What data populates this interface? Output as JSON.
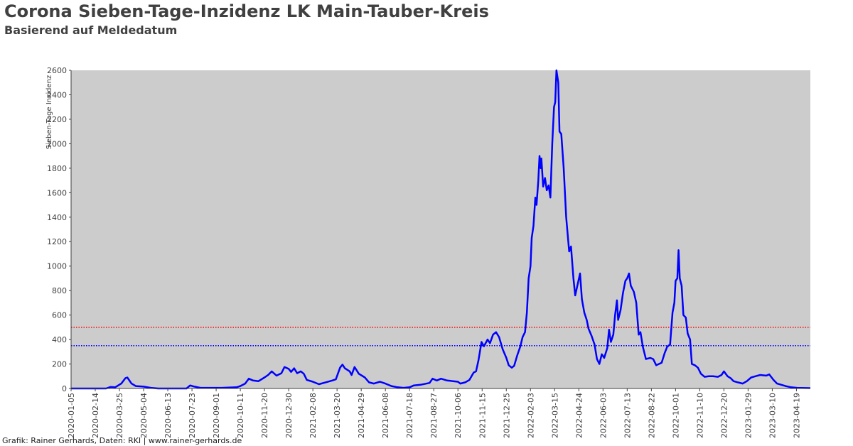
{
  "header": {
    "title": "Corona Sieben-Tage-Inzidenz LK Main-Tauber-Kreis",
    "subtitle": "Basierend auf Meldedatum"
  },
  "footer": {
    "credit": "Grafik: Rainer Gerhards, Daten: RKI | www.rainer-gerhards.de"
  },
  "colors": {
    "plot_background": "#cccccc",
    "series": "#0000ff",
    "threshold_500": "#ff0000",
    "threshold_350": "#0000ff"
  },
  "chart_data": {
    "type": "line",
    "title": "Corona Sieben-Tage-Inzidenz LK Main-Tauber-Kreis",
    "subtitle": "Basierend auf Meldedatum",
    "xlabel": "",
    "ylabel": "Sieben-Tage Inzidenz",
    "ylim": [
      0,
      2600
    ],
    "xlim": [
      "2020-01-05",
      "2023-05-12"
    ],
    "grid": false,
    "yticks": [
      0,
      200,
      400,
      600,
      800,
      1000,
      1200,
      1400,
      1600,
      1800,
      2000,
      2200,
      2400,
      2600
    ],
    "xticks": [
      "2020-01-05",
      "2020-02-14",
      "2020-03-25",
      "2020-05-04",
      "2020-06-13",
      "2020-07-23",
      "2020-09-01",
      "2020-10-11",
      "2020-11-20",
      "2020-12-30",
      "2021-02-08",
      "2021-03-20",
      "2021-04-29",
      "2021-06-08",
      "2021-07-18",
      "2021-08-27",
      "2021-10-06",
      "2021-11-15",
      "2021-12-25",
      "2022-02-03",
      "2022-03-15",
      "2022-04-24",
      "2022-06-03",
      "2022-07-13",
      "2022-08-22",
      "2022-10-01",
      "2022-11-10",
      "2022-12-20",
      "2023-01-29",
      "2023-03-10",
      "2023-04-19"
    ],
    "reference_lines": [
      {
        "y": 500,
        "color": "#ff0000",
        "style": "dotted"
      },
      {
        "y": 350,
        "color": "#0000ff",
        "style": "dotted"
      }
    ],
    "series": [
      {
        "color": "#0000ff",
        "points": [
          [
            "2020-01-05",
            0
          ],
          [
            "2020-03-03",
            0
          ],
          [
            "2020-03-10",
            12
          ],
          [
            "2020-03-18",
            10
          ],
          [
            "2020-03-28",
            40
          ],
          [
            "2020-04-04",
            85
          ],
          [
            "2020-04-07",
            90
          ],
          [
            "2020-04-14",
            40
          ],
          [
            "2020-04-21",
            20
          ],
          [
            "2020-05-04",
            15
          ],
          [
            "2020-05-16",
            5
          ],
          [
            "2020-05-28",
            0
          ],
          [
            "2020-07-14",
            0
          ],
          [
            "2020-07-20",
            25
          ],
          [
            "2020-07-27",
            15
          ],
          [
            "2020-08-06",
            5
          ],
          [
            "2020-08-18",
            5
          ],
          [
            "2020-09-10",
            5
          ],
          [
            "2020-10-05",
            10
          ],
          [
            "2020-10-11",
            20
          ],
          [
            "2020-10-19",
            40
          ],
          [
            "2020-10-25",
            80
          ],
          [
            "2020-11-01",
            65
          ],
          [
            "2020-11-10",
            60
          ],
          [
            "2020-11-20",
            90
          ],
          [
            "2020-11-26",
            110
          ],
          [
            "2020-12-02",
            140
          ],
          [
            "2020-12-10",
            105
          ],
          [
            "2020-12-18",
            125
          ],
          [
            "2020-12-23",
            175
          ],
          [
            "2020-12-30",
            160
          ],
          [
            "2021-01-03",
            135
          ],
          [
            "2021-01-08",
            165
          ],
          [
            "2021-01-13",
            125
          ],
          [
            "2021-01-19",
            140
          ],
          [
            "2021-01-24",
            120
          ],
          [
            "2021-01-29",
            70
          ],
          [
            "2021-02-08",
            55
          ],
          [
            "2021-02-18",
            35
          ],
          [
            "2021-03-01",
            50
          ],
          [
            "2021-03-12",
            65
          ],
          [
            "2021-03-18",
            75
          ],
          [
            "2021-03-25",
            170
          ],
          [
            "2021-03-29",
            195
          ],
          [
            "2021-04-02",
            165
          ],
          [
            "2021-04-10",
            140
          ],
          [
            "2021-04-13",
            110
          ],
          [
            "2021-04-18",
            175
          ],
          [
            "2021-04-25",
            120
          ],
          [
            "2021-05-05",
            90
          ],
          [
            "2021-05-12",
            50
          ],
          [
            "2021-05-20",
            40
          ],
          [
            "2021-05-30",
            55
          ],
          [
            "2021-06-08",
            40
          ],
          [
            "2021-06-18",
            20
          ],
          [
            "2021-06-28",
            10
          ],
          [
            "2021-07-08",
            5
          ],
          [
            "2021-07-18",
            10
          ],
          [
            "2021-07-25",
            25
          ],
          [
            "2021-08-05",
            30
          ],
          [
            "2021-08-20",
            45
          ],
          [
            "2021-08-25",
            80
          ],
          [
            "2021-09-01",
            65
          ],
          [
            "2021-09-08",
            80
          ],
          [
            "2021-09-18",
            65
          ],
          [
            "2021-09-28",
            60
          ],
          [
            "2021-10-06",
            55
          ],
          [
            "2021-10-10",
            40
          ],
          [
            "2021-10-18",
            50
          ],
          [
            "2021-10-25",
            70
          ],
          [
            "2021-11-01",
            130
          ],
          [
            "2021-11-05",
            140
          ],
          [
            "2021-11-09",
            230
          ],
          [
            "2021-11-14",
            380
          ],
          [
            "2021-11-18",
            345
          ],
          [
            "2021-11-24",
            400
          ],
          [
            "2021-11-28",
            370
          ],
          [
            "2021-12-03",
            440
          ],
          [
            "2021-12-08",
            460
          ],
          [
            "2021-12-13",
            420
          ],
          [
            "2021-12-19",
            320
          ],
          [
            "2021-12-25",
            250
          ],
          [
            "2021-12-29",
            190
          ],
          [
            "2022-01-03",
            170
          ],
          [
            "2022-01-07",
            185
          ],
          [
            "2022-01-12",
            270
          ],
          [
            "2022-01-17",
            340
          ],
          [
            "2022-01-21",
            420
          ],
          [
            "2022-01-25",
            460
          ],
          [
            "2022-01-28",
            620
          ],
          [
            "2022-01-31",
            900
          ],
          [
            "2022-02-03",
            1000
          ],
          [
            "2022-02-05",
            1230
          ],
          [
            "2022-02-08",
            1330
          ],
          [
            "2022-02-11",
            1560
          ],
          [
            "2022-02-13",
            1500
          ],
          [
            "2022-02-16",
            1700
          ],
          [
            "2022-02-18",
            1900
          ],
          [
            "2022-02-20",
            1800
          ],
          [
            "2022-02-21",
            1880
          ],
          [
            "2022-02-24",
            1650
          ],
          [
            "2022-02-27",
            1720
          ],
          [
            "2022-03-02",
            1620
          ],
          [
            "2022-03-05",
            1660
          ],
          [
            "2022-03-08",
            1560
          ],
          [
            "2022-03-11",
            2000
          ],
          [
            "2022-03-14",
            2300
          ],
          [
            "2022-03-16",
            2340
          ],
          [
            "2022-03-18",
            2600
          ],
          [
            "2022-03-21",
            2500
          ],
          [
            "2022-03-23",
            2100
          ],
          [
            "2022-03-26",
            2080
          ],
          [
            "2022-03-30",
            1800
          ],
          [
            "2022-04-03",
            1400
          ],
          [
            "2022-04-08",
            1120
          ],
          [
            "2022-04-11",
            1160
          ],
          [
            "2022-04-15",
            900
          ],
          [
            "2022-04-18",
            760
          ],
          [
            "2022-04-22",
            850
          ],
          [
            "2022-04-26",
            940
          ],
          [
            "2022-04-29",
            730
          ],
          [
            "2022-05-03",
            620
          ],
          [
            "2022-05-07",
            560
          ],
          [
            "2022-05-10",
            490
          ],
          [
            "2022-05-15",
            430
          ],
          [
            "2022-05-20",
            360
          ],
          [
            "2022-05-24",
            240
          ],
          [
            "2022-05-28",
            200
          ],
          [
            "2022-06-01",
            280
          ],
          [
            "2022-06-05",
            250
          ],
          [
            "2022-06-10",
            330
          ],
          [
            "2022-06-13",
            480
          ],
          [
            "2022-06-16",
            380
          ],
          [
            "2022-06-20",
            440
          ],
          [
            "2022-06-23",
            600
          ],
          [
            "2022-06-26",
            720
          ],
          [
            "2022-06-28",
            560
          ],
          [
            "2022-07-02",
            640
          ],
          [
            "2022-07-06",
            780
          ],
          [
            "2022-07-10",
            880
          ],
          [
            "2022-07-13",
            900
          ],
          [
            "2022-07-16",
            940
          ],
          [
            "2022-07-19",
            840
          ],
          [
            "2022-07-24",
            790
          ],
          [
            "2022-07-28",
            700
          ],
          [
            "2022-08-01",
            440
          ],
          [
            "2022-08-04",
            460
          ],
          [
            "2022-08-08",
            340
          ],
          [
            "2022-08-13",
            240
          ],
          [
            "2022-08-20",
            250
          ],
          [
            "2022-08-25",
            240
          ],
          [
            "2022-08-30",
            190
          ],
          [
            "2022-09-08",
            210
          ],
          [
            "2022-09-13",
            290
          ],
          [
            "2022-09-17",
            340
          ],
          [
            "2022-09-22",
            360
          ],
          [
            "2022-09-26",
            620
          ],
          [
            "2022-09-29",
            700
          ],
          [
            "2022-10-01",
            880
          ],
          [
            "2022-10-04",
            900
          ],
          [
            "2022-10-06",
            1130
          ],
          [
            "2022-10-08",
            900
          ],
          [
            "2022-10-11",
            840
          ],
          [
            "2022-10-14",
            600
          ],
          [
            "2022-10-18",
            580
          ],
          [
            "2022-10-21",
            450
          ],
          [
            "2022-10-25",
            400
          ],
          [
            "2022-10-28",
            200
          ],
          [
            "2022-11-02",
            190
          ],
          [
            "2022-11-07",
            170
          ],
          [
            "2022-11-12",
            120
          ],
          [
            "2022-11-18",
            95
          ],
          [
            "2022-11-25",
            100
          ],
          [
            "2022-12-02",
            100
          ],
          [
            "2022-12-10",
            95
          ],
          [
            "2022-12-16",
            110
          ],
          [
            "2022-12-20",
            140
          ],
          [
            "2022-12-26",
            100
          ],
          [
            "2022-12-31",
            85
          ],
          [
            "2023-01-05",
            60
          ],
          [
            "2023-01-12",
            50
          ],
          [
            "2023-01-20",
            40
          ],
          [
            "2023-01-27",
            60
          ],
          [
            "2023-02-03",
            90
          ],
          [
            "2023-02-10",
            100
          ],
          [
            "2023-02-18",
            110
          ],
          [
            "2023-02-28",
            105
          ],
          [
            "2023-03-05",
            115
          ],
          [
            "2023-03-12",
            70
          ],
          [
            "2023-03-18",
            40
          ],
          [
            "2023-03-25",
            30
          ],
          [
            "2023-04-01",
            20
          ],
          [
            "2023-04-10",
            10
          ],
          [
            "2023-04-20",
            5
          ],
          [
            "2023-05-12",
            3
          ]
        ]
      }
    ]
  }
}
